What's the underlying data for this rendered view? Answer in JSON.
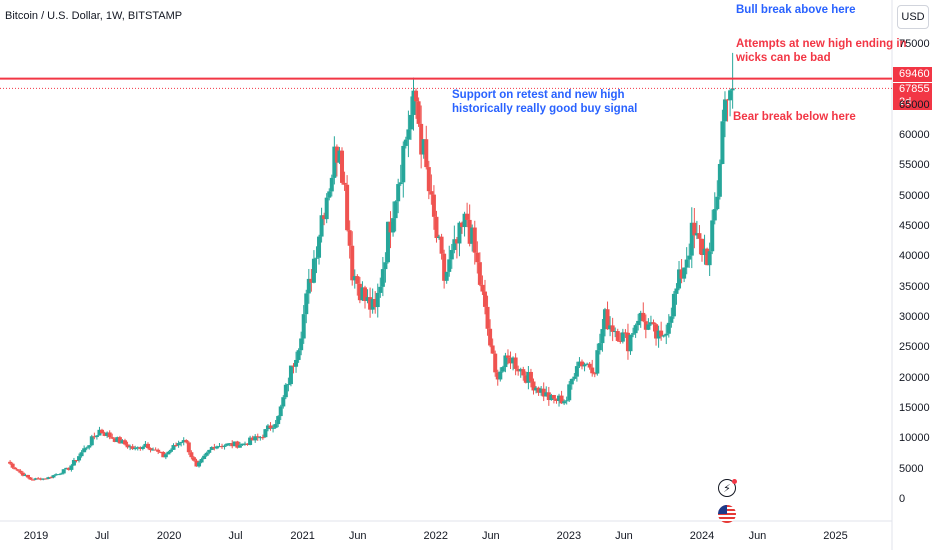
{
  "chart_data": {
    "type": "candlestick",
    "title": "Bitcoin / U.S. Dollar, 1W, BITSTAMP",
    "currency_label": "USD",
    "y_ticks": [
      0,
      5000,
      10000,
      15000,
      20000,
      25000,
      30000,
      35000,
      40000,
      45000,
      50000,
      55000,
      60000,
      65000,
      75000
    ],
    "ylim": [
      -2000,
      82000
    ],
    "x_ticks": [
      "2019",
      "Jul",
      "2020",
      "Jul",
      "2021",
      "Jun",
      "2022",
      "Jun",
      "2023",
      "Jun",
      "2024",
      "Jun",
      "2025"
    ],
    "x_tick_dates": [
      "2019-01-01",
      "2019-07-01",
      "2020-01-01",
      "2020-07-01",
      "2021-01-01",
      "2021-06-01",
      "2022-01-01",
      "2022-06-01",
      "2023-01-01",
      "2023-06-01",
      "2024-01-01",
      "2024-06-01",
      "2025-01-01"
    ],
    "price_path": [
      {
        "date": "2018-10-15",
        "price": 6300
      },
      {
        "date": "2018-11-19",
        "price": 4500
      },
      {
        "date": "2018-12-17",
        "price": 3400
      },
      {
        "date": "2019-02-01",
        "price": 3600
      },
      {
        "date": "2019-04-01",
        "price": 5200
      },
      {
        "date": "2019-06-24",
        "price": 11500
      },
      {
        "date": "2019-07-29",
        "price": 10300
      },
      {
        "date": "2019-09-30",
        "price": 8300
      },
      {
        "date": "2019-10-28",
        "price": 9300
      },
      {
        "date": "2019-12-16",
        "price": 7200
      },
      {
        "date": "2020-02-10",
        "price": 10200
      },
      {
        "date": "2020-03-16",
        "price": 5300
      },
      {
        "date": "2020-05-01",
        "price": 9000
      },
      {
        "date": "2020-07-20",
        "price": 9200
      },
      {
        "date": "2020-09-07",
        "price": 10400
      },
      {
        "date": "2020-10-26",
        "price": 13500
      },
      {
        "date": "2020-12-21",
        "price": 26000
      },
      {
        "date": "2021-01-18",
        "price": 35000
      },
      {
        "date": "2021-02-22",
        "price": 47000
      },
      {
        "date": "2021-04-12",
        "price": 60000
      },
      {
        "date": "2021-05-17",
        "price": 38000
      },
      {
        "date": "2021-06-21",
        "price": 33000
      },
      {
        "date": "2021-07-19",
        "price": 31000
      },
      {
        "date": "2021-09-06",
        "price": 49000
      },
      {
        "date": "2021-10-18",
        "price": 62000
      },
      {
        "date": "2021-11-08",
        "price": 65500
      },
      {
        "date": "2021-12-20",
        "price": 48000
      },
      {
        "date": "2022-01-24",
        "price": 36500
      },
      {
        "date": "2022-03-28",
        "price": 46500
      },
      {
        "date": "2022-04-25",
        "price": 38500
      },
      {
        "date": "2022-06-13",
        "price": 20500
      },
      {
        "date": "2022-07-25",
        "price": 23500
      },
      {
        "date": "2022-09-19",
        "price": 19500
      },
      {
        "date": "2022-11-14",
        "price": 16500
      },
      {
        "date": "2022-12-26",
        "price": 16600
      },
      {
        "date": "2023-01-23",
        "price": 23000
      },
      {
        "date": "2023-03-13",
        "price": 22000
      },
      {
        "date": "2023-04-10",
        "price": 30000
      },
      {
        "date": "2023-06-12",
        "price": 26000
      },
      {
        "date": "2023-07-10",
        "price": 30500
      },
      {
        "date": "2023-09-11",
        "price": 26000
      },
      {
        "date": "2023-10-23",
        "price": 34500
      },
      {
        "date": "2023-12-04",
        "price": 43500
      },
      {
        "date": "2024-01-22",
        "price": 40000
      },
      {
        "date": "2024-02-12",
        "price": 51000
      },
      {
        "date": "2024-02-26",
        "price": 62000
      },
      {
        "date": "2024-03-11",
        "price": 69000
      },
      {
        "date": "2024-03-25",
        "price": 67855
      }
    ],
    "last_price": 67855,
    "horizontal_line": {
      "price": 69460,
      "label": "69460",
      "color": "#f23645"
    },
    "last_price_label": "67855",
    "countdown_label": "2d 16h",
    "colors": {
      "up": "#26a69a",
      "down": "#ef5350"
    },
    "annotations": [
      {
        "text": "Bull break above here",
        "color": "#2962ff"
      },
      {
        "text": "Attempts at new high ending in wicks can be bad",
        "color": "#f23645"
      },
      {
        "text": "Support on retest and new high historically really good buy signal",
        "color": "#2962ff"
      },
      {
        "text": "Bear break below here",
        "color": "#f23645"
      }
    ]
  },
  "annotation_lines": {
    "bull": "Bull break above here",
    "wicks_1": "Attempts at new high ending in",
    "wicks_2": "wicks can be bad",
    "support_1": "Support on retest and new high",
    "support_2": "historically really good buy signal",
    "bear": "Bear break below here"
  },
  "icons": {
    "bolt": "lightning-icon",
    "flag": "us-flag-icon"
  }
}
